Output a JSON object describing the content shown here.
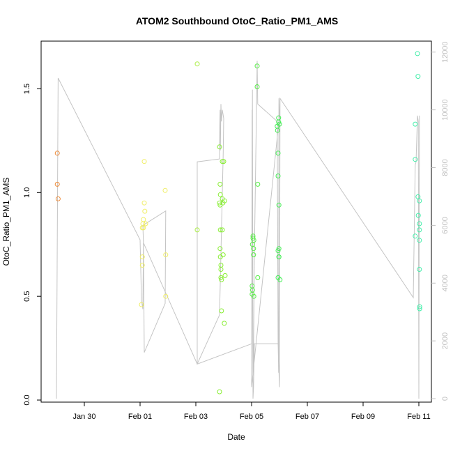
{
  "chart_data": {
    "type": "scatter",
    "title": "ATOM2 Southbound OtoC_Ratio_PM1_AMS",
    "xlabel": "Date",
    "ylabel": "OtoC_Ratio_PM1_AMS",
    "x_unit": "days since Jan 28 00:00 (x tick Jan 30 = 2.0)",
    "x_ticks": [
      {
        "value": 2.0,
        "label": "Jan 30"
      },
      {
        "value": 4.0,
        "label": "Feb 01"
      },
      {
        "value": 6.0,
        "label": "Feb 03"
      },
      {
        "value": 8.0,
        "label": "Feb 05"
      },
      {
        "value": 10.0,
        "label": "Feb 07"
      },
      {
        "value": 12.0,
        "label": "Feb 09"
      },
      {
        "value": 14.0,
        "label": "Feb 11"
      }
    ],
    "xlim": [
      0.45,
      14.45
    ],
    "ylim": [
      -0.01,
      1.73
    ],
    "y_ticks": [
      {
        "value": 0.0,
        "label": "0.0"
      },
      {
        "value": 0.5,
        "label": "0.5"
      },
      {
        "value": 1.0,
        "label": "1.0"
      },
      {
        "value": 1.5,
        "label": "1.5"
      }
    ],
    "y2_ticks": [
      {
        "value": 0,
        "label": "0"
      },
      {
        "value": 2000,
        "label": "2000"
      },
      {
        "value": 4000,
        "label": "4000"
      },
      {
        "value": 6000,
        "label": "6000"
      },
      {
        "value": 8000,
        "label": "8000"
      },
      {
        "value": 10000,
        "label": "10000"
      },
      {
        "value": 12000,
        "label": "12000"
      }
    ],
    "y2lim": [
      -120,
      12380
    ],
    "grid": false,
    "legend": "none",
    "series": [
      {
        "color": "#ee8833",
        "points": [
          [
            1.03,
            1.19
          ],
          [
            1.03,
            1.04
          ],
          [
            1.06,
            0.97
          ]
        ]
      },
      {
        "color": "#f0ee66",
        "points": [
          [
            4.05,
            0.46
          ],
          [
            4.08,
            0.65
          ],
          [
            4.08,
            0.69
          ],
          [
            4.08,
            0.83
          ],
          [
            4.1,
            0.85
          ],
          [
            4.12,
            0.87
          ],
          [
            4.12,
            0.83
          ],
          [
            4.15,
            1.15
          ],
          [
            4.15,
            0.95
          ],
          [
            4.17,
            0.91
          ],
          [
            4.2,
            0.85
          ],
          [
            4.9,
            1.01
          ],
          [
            4.92,
            0.7
          ],
          [
            4.92,
            0.5
          ]
        ]
      },
      {
        "color": "#aaee44",
        "points": [
          [
            6.05,
            1.62
          ],
          [
            6.05,
            0.82
          ]
        ]
      },
      {
        "color": "#88ee33",
        "points": [
          [
            6.85,
            0.04
          ],
          [
            6.85,
            1.22
          ],
          [
            6.85,
            0.95
          ],
          [
            6.87,
            1.04
          ],
          [
            6.87,
            0.73
          ],
          [
            6.87,
            0.94
          ],
          [
            6.88,
            0.82
          ],
          [
            6.88,
            0.99
          ],
          [
            6.88,
            0.69
          ],
          [
            6.9,
            0.65
          ],
          [
            6.9,
            0.63
          ],
          [
            6.9,
            0.59
          ],
          [
            6.92,
            0.58
          ],
          [
            6.92,
            0.43
          ],
          [
            6.95,
            1.15
          ],
          [
            6.95,
            0.97
          ],
          [
            6.95,
            0.82
          ],
          [
            6.97,
            0.95
          ],
          [
            6.98,
            0.7
          ],
          [
            7.0,
            1.15
          ],
          [
            7.02,
            0.37
          ],
          [
            7.03,
            0.96
          ],
          [
            7.05,
            0.6
          ]
        ]
      },
      {
        "color": "#55ee44",
        "points": [
          [
            8.02,
            0.55
          ],
          [
            8.02,
            0.51
          ],
          [
            8.03,
            0.53
          ],
          [
            8.03,
            0.75
          ],
          [
            8.05,
            0.79
          ],
          [
            8.05,
            0.78
          ],
          [
            8.07,
            0.73
          ],
          [
            8.07,
            0.7
          ],
          [
            8.08,
            0.77
          ],
          [
            8.08,
            0.5
          ],
          [
            8.2,
            1.61
          ],
          [
            8.2,
            1.51
          ],
          [
            8.22,
            1.04
          ],
          [
            8.22,
            0.59
          ]
        ]
      },
      {
        "color": "#44ee55",
        "points": [
          [
            8.92,
            1.32
          ],
          [
            8.93,
            1.3
          ],
          [
            8.95,
            1.19
          ],
          [
            8.95,
            1.08
          ],
          [
            8.97,
            1.36
          ],
          [
            8.97,
            1.34
          ],
          [
            8.98,
            0.94
          ],
          [
            8.95,
            0.72
          ],
          [
            8.98,
            0.73
          ],
          [
            8.98,
            0.69
          ],
          [
            8.98,
            0.69
          ],
          [
            8.95,
            0.59
          ],
          [
            9.02,
            0.58
          ],
          [
            9.0,
            1.33
          ]
        ]
      },
      {
        "color": "#44eeaa",
        "points": [
          [
            13.87,
            1.33
          ],
          [
            13.87,
            1.16
          ],
          [
            13.87,
            0.79
          ],
          [
            13.95,
            1.67
          ],
          [
            13.97,
            1.56
          ],
          [
            13.97,
            0.98
          ],
          [
            13.98,
            0.89
          ],
          [
            14.02,
            0.96
          ],
          [
            14.02,
            0.85
          ],
          [
            14.02,
            0.82
          ],
          [
            14.02,
            0.77
          ],
          [
            14.02,
            0.63
          ],
          [
            14.03,
            0.45
          ],
          [
            14.03,
            0.44
          ]
        ]
      }
    ],
    "line_series": {
      "axis": "y2",
      "color": "#c4c4c4",
      "points": [
        [
          1.0,
          0
        ],
        [
          1.06,
          11100
        ],
        [
          4.0,
          5500
        ],
        [
          4.05,
          3400
        ],
        [
          4.1,
          3100
        ],
        [
          4.12,
          5500
        ],
        [
          4.15,
          1600
        ],
        [
          4.9,
          3300
        ],
        [
          4.92,
          6500
        ],
        [
          4.1,
          6000
        ],
        [
          4.12,
          5400
        ],
        [
          6.05,
          1200
        ],
        [
          6.05,
          8200
        ],
        [
          6.85,
          8300
        ],
        [
          6.86,
          9500
        ],
        [
          6.87,
          10000
        ],
        [
          6.88,
          8600
        ],
        [
          6.9,
          10200
        ],
        [
          6.92,
          9600
        ],
        [
          6.95,
          10000
        ],
        [
          7.0,
          9700
        ],
        [
          6.98,
          8400
        ],
        [
          6.85,
          2900
        ],
        [
          6.05,
          1200
        ],
        [
          8.0,
          1900
        ],
        [
          8.03,
          10700
        ],
        [
          8.05,
          800
        ],
        [
          8.07,
          1500
        ],
        [
          8.1,
          5000
        ],
        [
          8.2,
          11700
        ],
        [
          8.22,
          10200
        ],
        [
          8.92,
          9600
        ],
        [
          8.95,
          2000
        ],
        [
          8.97,
          900
        ],
        [
          8.98,
          10400
        ],
        [
          9.0,
          9800
        ],
        [
          8.0,
          400
        ],
        [
          8.02,
          10000
        ],
        [
          8.04,
          2300
        ],
        [
          8.05,
          0
        ],
        [
          8.07,
          400
        ],
        [
          8.1,
          1900
        ],
        [
          8.95,
          1900
        ],
        [
          9.0,
          400
        ],
        [
          9.02,
          10400
        ],
        [
          13.8,
          3500
        ],
        [
          13.87,
          8100
        ],
        [
          13.9,
          8200
        ],
        [
          13.95,
          9800
        ],
        [
          13.98,
          9600
        ],
        [
          14.0,
          0
        ],
        [
          14.02,
          9800
        ]
      ]
    }
  }
}
